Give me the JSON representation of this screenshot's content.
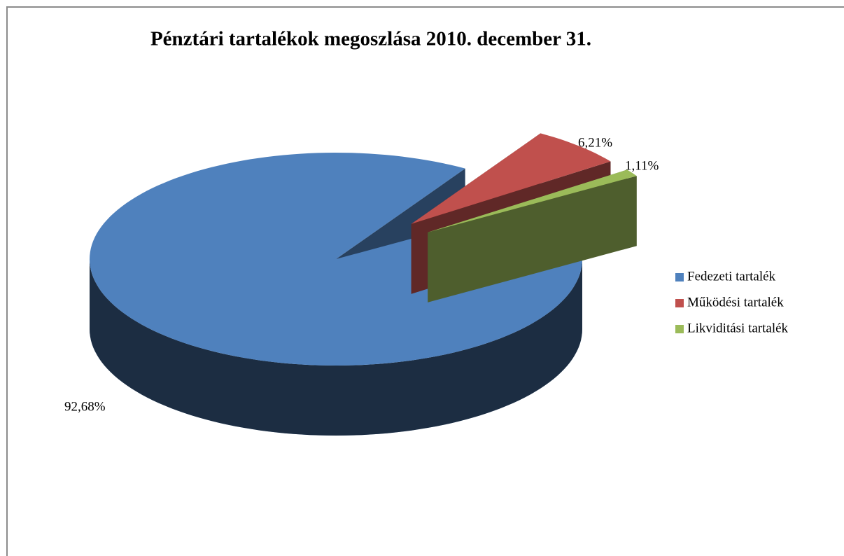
{
  "chart_data": {
    "type": "pie",
    "title": "Pénztári tartalékok megoszlása 2010. december 31.",
    "categories": [
      "Fedezeti tartalék",
      "Működési tartalék",
      "Likviditási tartalék"
    ],
    "values": [
      92.68,
      6.21,
      1.11
    ],
    "value_labels": [
      "92,68%",
      "6,21%",
      "1,11%"
    ],
    "colors": [
      "#4f81bd",
      "#c0504d",
      "#9bbb59"
    ],
    "legend": "right"
  }
}
